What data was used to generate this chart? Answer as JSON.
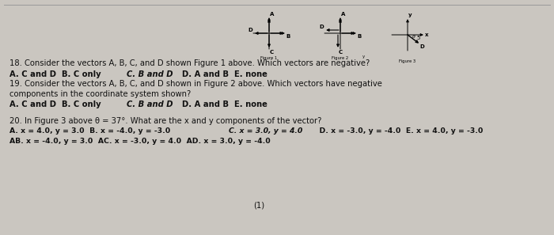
{
  "background_color": "#cac6c0",
  "fig_width": 7.0,
  "fig_height": 2.97,
  "text_color": "#111111",
  "q18": "18. Consider the vectors A, B, C, and D shown Figure 1 above. Which vectors are negative?",
  "q18_ans_normal": "A. C and D  B. C only  ",
  "q18_ans_bold_italic": "C. B and D",
  "q18_ans_end": "  D. A and B  E. none",
  "q19_line1": "19. Consider the vectors A, B, C, and D shown in Figure 2 above. Which vectors have negative",
  "q19_line2": "components in the coordinate system shown?",
  "q19_ans_normal": "A. C and D  B. C only  ",
  "q19_ans_bold_italic": "C. B and D",
  "q19_ans_end": "  D. A and B  E. none",
  "q20_line1": "20. In Figure 3 above θ = 37°. What are the x and y components of the vector?",
  "q20_ans1_start": "A. x = 4.0, y = 3.0  B. x = -4.0, y = -3.0  ",
  "q20_ans1_bold": "C. x = 3.0, y = 4.0",
  "q20_ans1_end": "  D. x = -3.0, y = -4.0  E. x = 4.0, y = -3.0",
  "q20_ans2": "AB. x = -4.0, y = 3.0  AC. x = -3.0, y = 4.0  AD. x = 3.0, y = -4.0",
  "page_num": "(1)"
}
